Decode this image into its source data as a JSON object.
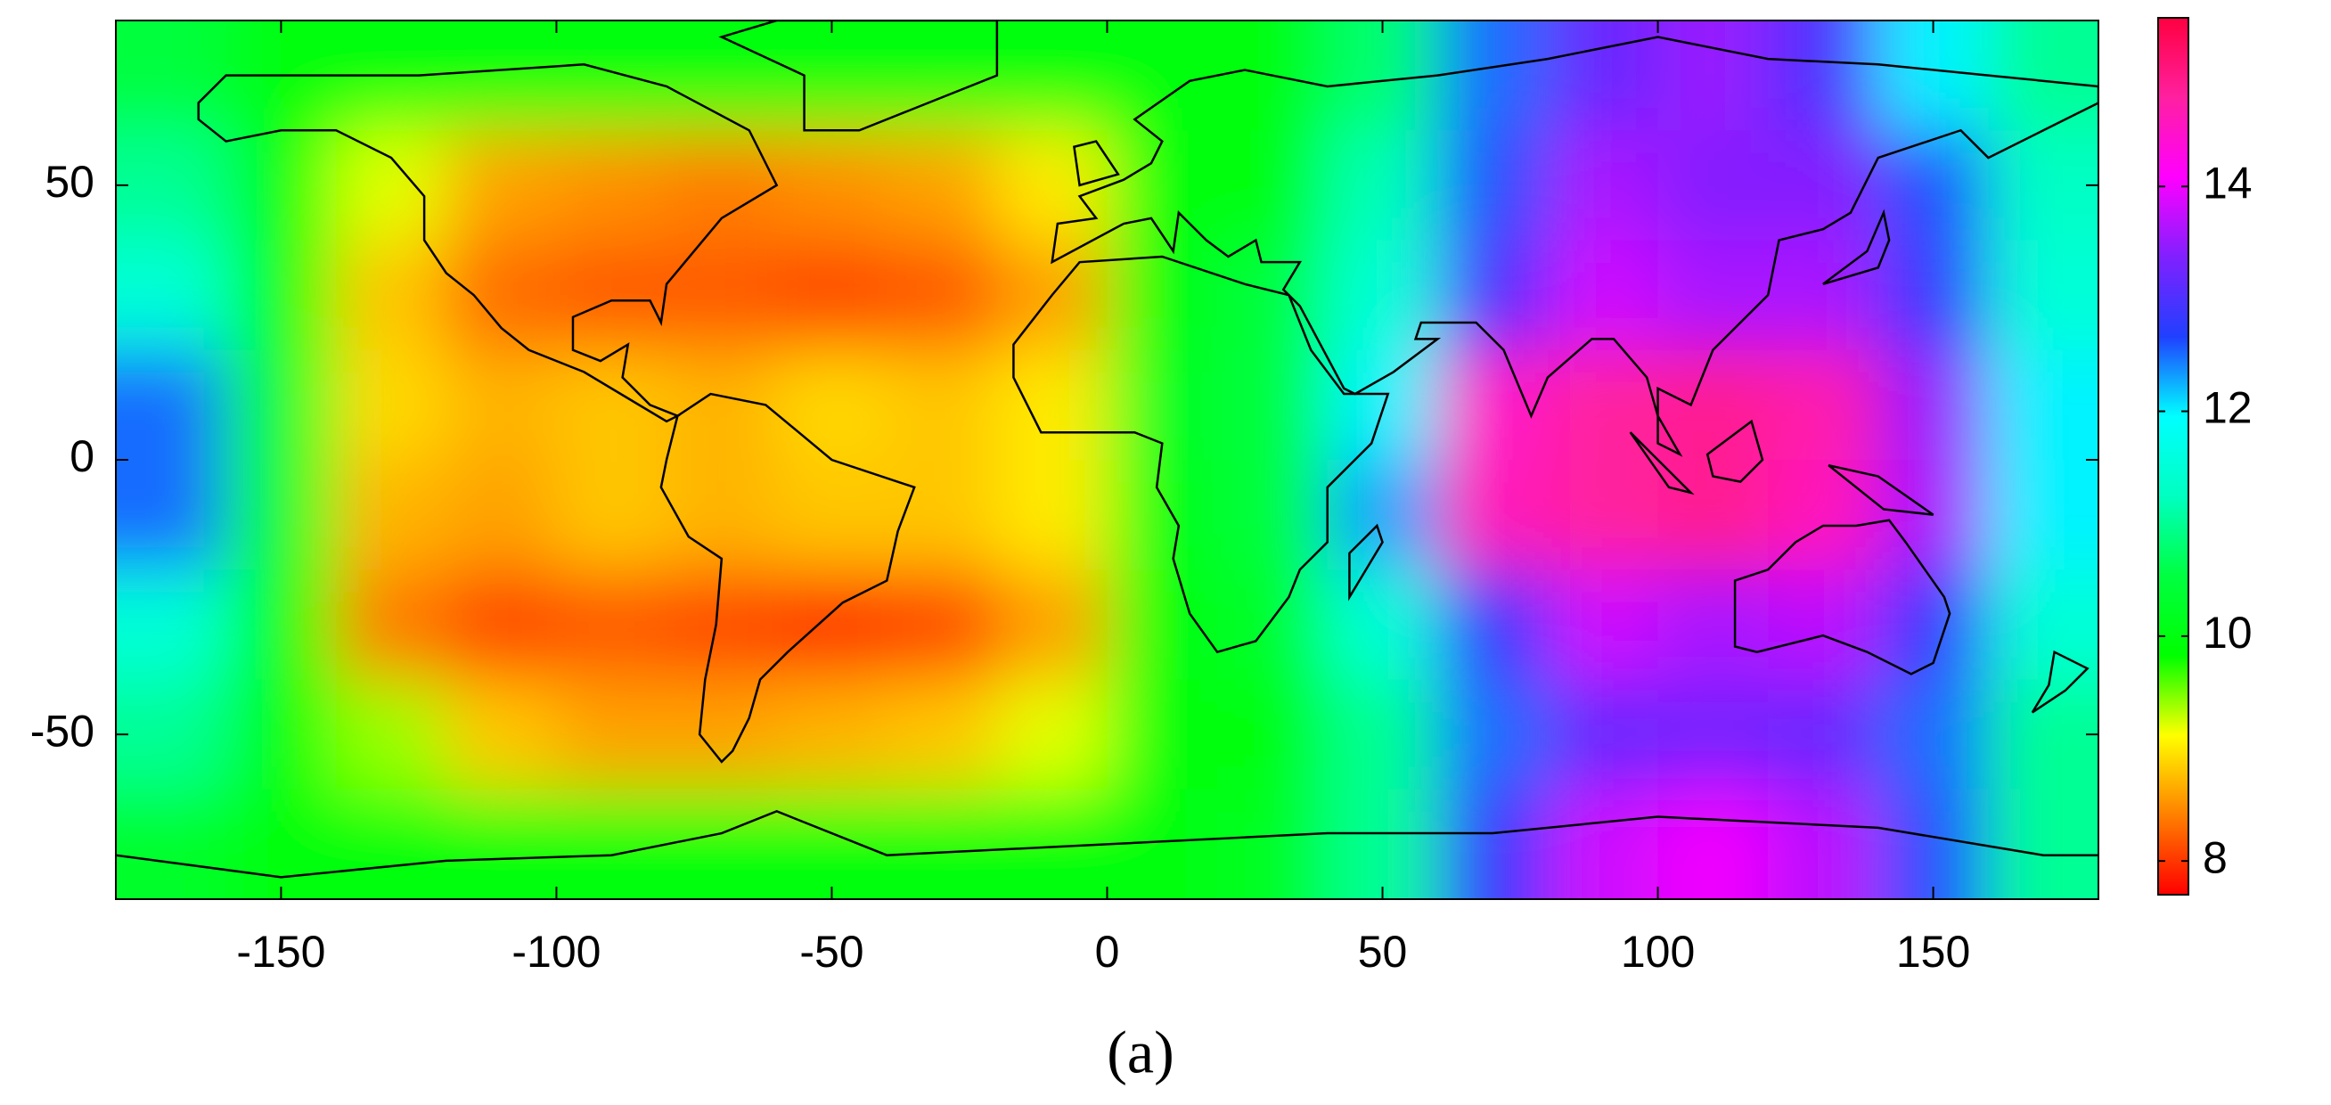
{
  "chart_data": {
    "type": "heatmap",
    "caption": "(a)",
    "x": [
      -170,
      -150,
      -130,
      -110,
      -90,
      -70,
      -50,
      -30,
      -10,
      10,
      30,
      50,
      70,
      90,
      110,
      130,
      150,
      170
    ],
    "y": [
      70,
      50,
      30,
      10,
      -10,
      -30,
      -50,
      -70
    ],
    "values": [
      [
        10.5,
        10,
        10,
        10,
        10,
        10,
        10,
        10,
        10,
        10,
        10,
        10.8,
        12.5,
        13.2,
        13.5,
        13,
        12,
        11
      ],
      [
        11,
        10,
        9.2,
        8.6,
        8.5,
        8.4,
        8.5,
        8.6,
        9,
        10,
        10,
        11.2,
        12.6,
        13.6,
        13.4,
        13.4,
        12.6,
        11.3
      ],
      [
        11.5,
        10,
        8.8,
        8.3,
        8.2,
        8.2,
        8.1,
        8.2,
        8.6,
        10,
        10.5,
        11.5,
        13,
        13.8,
        13.6,
        13.6,
        12.8,
        11.5
      ],
      [
        12.5,
        10.3,
        8.9,
        8.7,
        8.8,
        8.7,
        8.9,
        8.8,
        9,
        10.2,
        10.5,
        12,
        14.5,
        14.8,
        14.9,
        14.7,
        13.5,
        12
      ],
      [
        12.5,
        10.3,
        8.7,
        8.6,
        8.8,
        8.7,
        8.8,
        8.8,
        9,
        10.1,
        10.5,
        12.3,
        14.6,
        14.8,
        14.9,
        14.6,
        13.6,
        12
      ],
      [
        11.5,
        10,
        8.4,
        8.1,
        8.2,
        8.1,
        8,
        8.1,
        8.6,
        10,
        10.3,
        11.5,
        12.8,
        13.8,
        13.6,
        13.7,
        12.8,
        11.5
      ],
      [
        11,
        10,
        9.4,
        8.8,
        8.6,
        8.6,
        8.7,
        8.8,
        9.2,
        10,
        10,
        11,
        12.5,
        13.2,
        13.3,
        13.2,
        12.5,
        11
      ],
      [
        10.3,
        10,
        10,
        10,
        10,
        10,
        10,
        10,
        10,
        10,
        10.2,
        11,
        12.8,
        13.8,
        14,
        13.7,
        12.6,
        11
      ]
    ],
    "xlim": [
      -180,
      180
    ],
    "xticks": [
      -150,
      -100,
      -50,
      0,
      50,
      100,
      150
    ],
    "ylim": [
      -80,
      80
    ],
    "yticks": [
      -50,
      0,
      50
    ],
    "clim": [
      7.7,
      15.5
    ],
    "cticks": [
      8,
      10,
      12,
      14
    ],
    "colormap": [
      "#ff0000",
      "#ff8000",
      "#ffff00",
      "#00ff00",
      "#00ff40",
      "#00ffc0",
      "#00ffff",
      "#2040ff",
      "#8020ff",
      "#ff00ff",
      "#ff20a0",
      "#ff0040"
    ]
  }
}
